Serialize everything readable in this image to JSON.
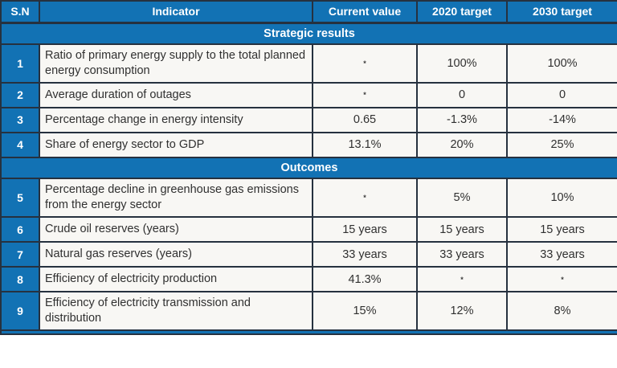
{
  "table": {
    "footnote_marker": "*",
    "columns": [
      "S.N",
      "Indicator",
      "Current value",
      "2020 target",
      "2030 target"
    ],
    "sections": [
      {
        "title": "Strategic results",
        "rows": [
          {
            "sn": "1",
            "indicator": "Ratio of primary energy supply to the total planned energy consumption",
            "current": "*",
            "t2020": "100%",
            "t2030": "100%"
          },
          {
            "sn": "2",
            "indicator": "Average duration of outages",
            "current": "*",
            "t2020": "0",
            "t2030": "0"
          },
          {
            "sn": "3",
            "indicator": "Percentage change in energy intensity",
            "current": "0.65",
            "t2020": "-1.3%",
            "t2030": "-14%"
          },
          {
            "sn": "4",
            "indicator": "Share of energy sector to GDP",
            "current": "13.1%",
            "t2020": "20%",
            "t2030": "25%"
          }
        ]
      },
      {
        "title": "Outcomes",
        "rows": [
          {
            "sn": "5",
            "indicator": "Percentage decline in greenhouse gas emissions from the energy sector",
            "current": "*",
            "t2020": "5%",
            "t2030": "10%"
          },
          {
            "sn": "6",
            "indicator": "Crude oil reserves (years)",
            "current": "15 years",
            "t2020": "15 years",
            "t2030": "15 years"
          },
          {
            "sn": "7",
            "indicator": "Natural gas reserves (years)",
            "current": "33 years",
            "t2020": "33 years",
            "t2030": "33 years"
          },
          {
            "sn": "8",
            "indicator": "Efficiency of electricity production",
            "current": "41.3%",
            "t2020": "*",
            "t2030": "*"
          },
          {
            "sn": "9",
            "indicator": "Efficiency of electricity transmission and distribution",
            "current": "15%",
            "t2020": "12%",
            "t2030": "8%"
          }
        ]
      }
    ],
    "colors": {
      "header_blue": "#1272b4",
      "border_dark": "#26313f",
      "cell_background": "#f8f7f4",
      "cell_text": "#303030",
      "header_text": "#ffffff"
    }
  }
}
